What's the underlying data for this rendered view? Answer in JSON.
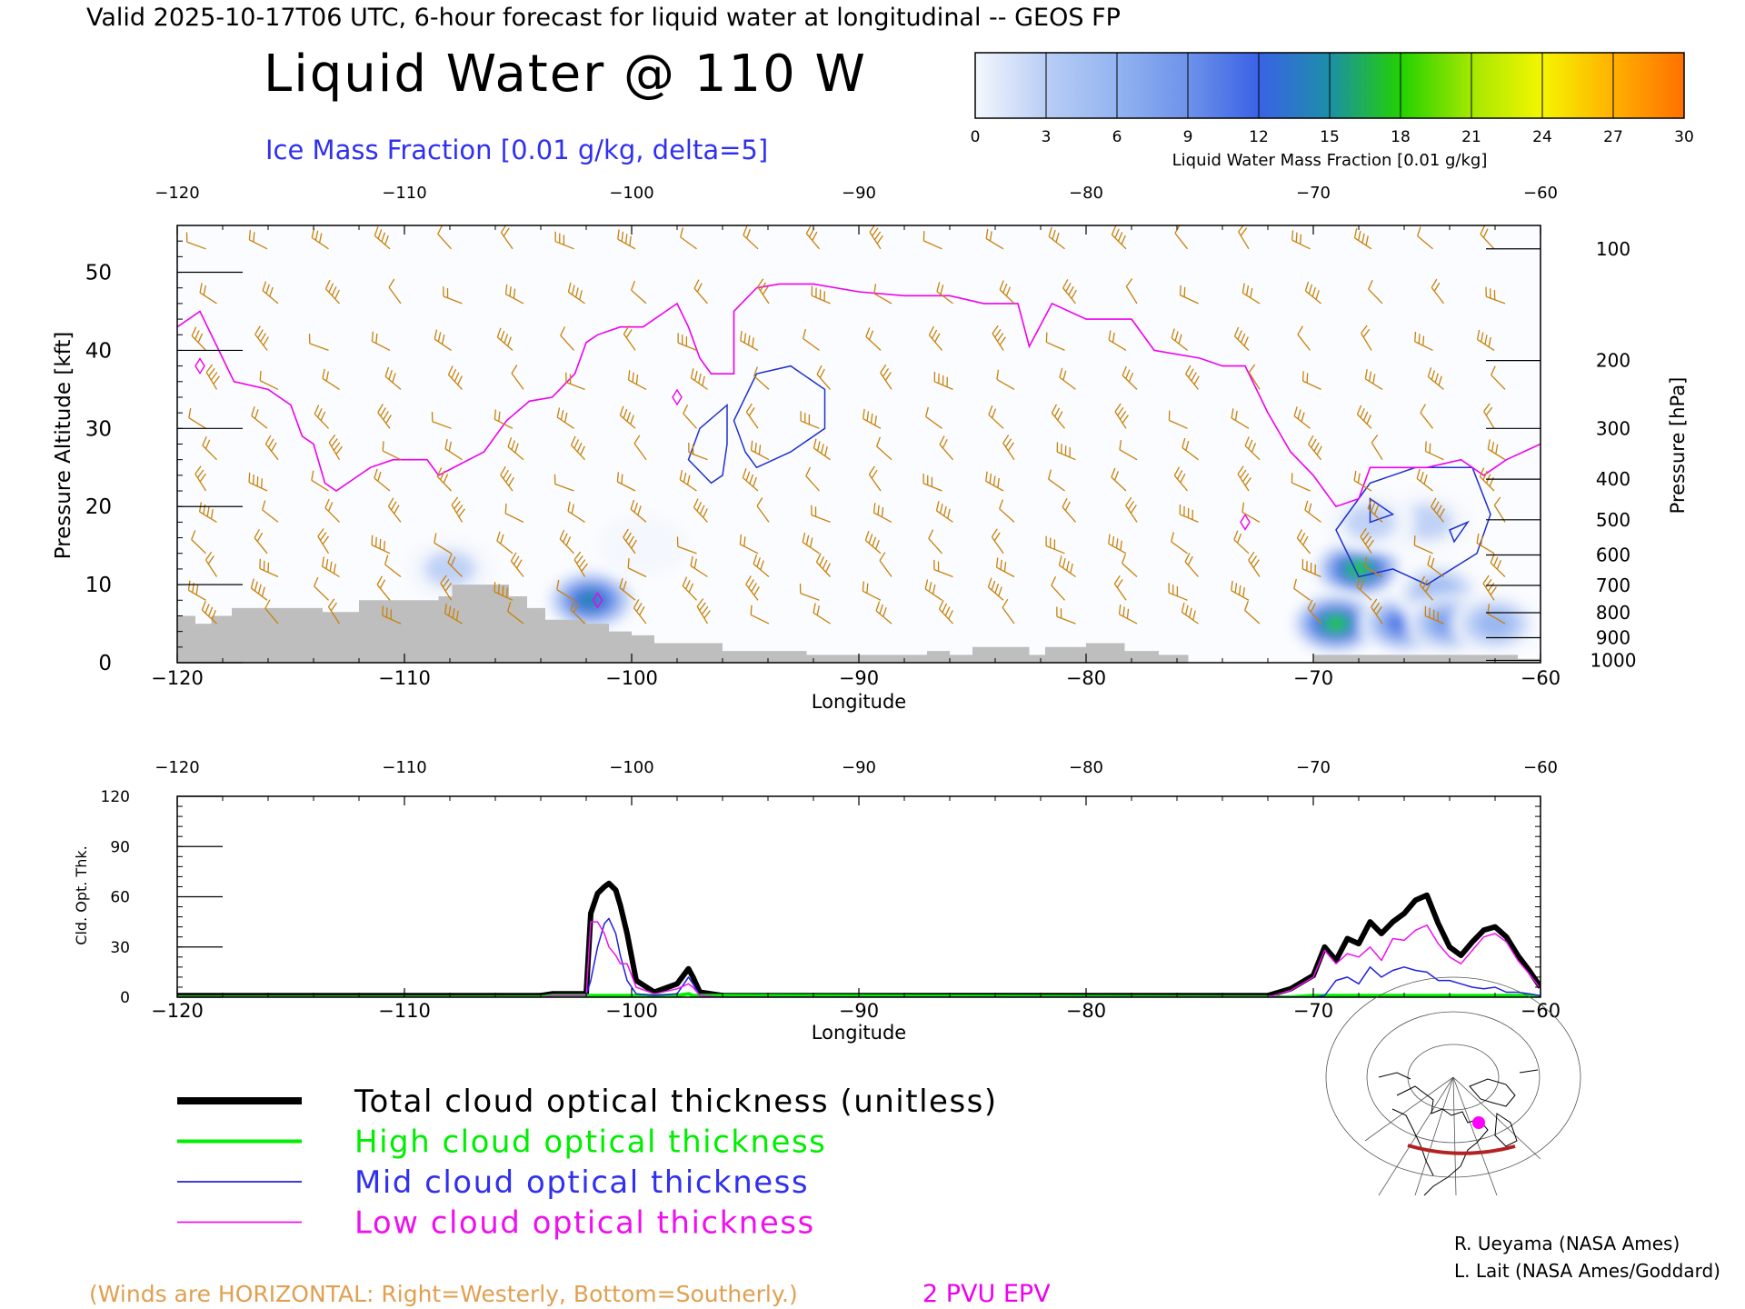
{
  "header": {
    "valid_line": "Valid 2025-10-17T06 UTC, 6-hour forecast for liquid water at longitudinal -- GEOS FP",
    "main_title": "Liquid Water @ 110 W",
    "subtitle": "Ice Mass Fraction [0.01 g/kg, delta=5]"
  },
  "colorbar": {
    "ticks": [
      "0",
      "3",
      "6",
      "9",
      "12",
      "15",
      "18",
      "21",
      "24",
      "27",
      "30"
    ],
    "label": "Liquid Water Mass Fraction [0.01 g/kg]",
    "colors": [
      "#f4f7fd",
      "#b9cdf5",
      "#93b4f1",
      "#6d92ea",
      "#3a62e6",
      "#1c8fa8",
      "#22d100",
      "#a5e800",
      "#f5f500",
      "#ffb000",
      "#ff7000"
    ]
  },
  "colors": {
    "wind_barbs": "#c8820a",
    "epv_contour": "#ee00ee",
    "ice_contour": "#2030cc",
    "terrain": "#bebebe",
    "total": "#000000",
    "high": "#00ee00",
    "mid": "#2020e0",
    "low": "#ee11ee"
  },
  "chart_data": [
    {
      "type": "heatmap",
      "xlabel": "Longitude",
      "ylabel": "Pressure Altitude [kft]",
      "y2label": "Pressure [hPa]",
      "xlim": [
        -120,
        -60
      ],
      "ylim": [
        0,
        56
      ],
      "x_ticks": [
        "-120",
        "-110",
        "-100",
        "-90",
        "-80",
        "-70",
        "-60"
      ],
      "y_ticks": [
        "0",
        "10",
        "20",
        "30",
        "40",
        "50"
      ],
      "pressure_ticks": [
        {
          "label": "100",
          "kft": 53
        },
        {
          "label": "200",
          "kft": 38.7
        },
        {
          "label": "300",
          "kft": 30
        },
        {
          "label": "400",
          "kft": 23.5
        },
        {
          "label": "500",
          "kft": 18.3
        },
        {
          "label": "600",
          "kft": 13.8
        },
        {
          "label": "700",
          "kft": 9.9
        },
        {
          "label": "800",
          "kft": 6.4
        },
        {
          "label": "900",
          "kft": 3.2
        },
        {
          "label": "1000",
          "kft": 0.3
        }
      ],
      "terrain_kft": [
        [
          -120,
          6
        ],
        [
          -119.2,
          6
        ],
        [
          -119.2,
          5
        ],
        [
          -118.5,
          5
        ],
        [
          -118.5,
          6
        ],
        [
          -117.6,
          6
        ],
        [
          -117.6,
          7
        ],
        [
          -113.6,
          7
        ],
        [
          -113.6,
          6.5
        ],
        [
          -112,
          6.5
        ],
        [
          -112,
          8
        ],
        [
          -108.5,
          8
        ],
        [
          -108.5,
          8.5
        ],
        [
          -107.9,
          8.5
        ],
        [
          -107.9,
          10
        ],
        [
          -105.4,
          10
        ],
        [
          -105.4,
          8.5
        ],
        [
          -104.6,
          8.5
        ],
        [
          -104.6,
          7
        ],
        [
          -103.8,
          7
        ],
        [
          -103.8,
          5.5
        ],
        [
          -102,
          5.5
        ],
        [
          -102,
          5
        ],
        [
          -101,
          5
        ],
        [
          -101,
          4
        ],
        [
          -100,
          4
        ],
        [
          -100,
          3.5
        ],
        [
          -99,
          3.5
        ],
        [
          -99,
          2.5
        ],
        [
          -96,
          2.5
        ],
        [
          -96,
          1.5
        ],
        [
          -92.3,
          1.5
        ],
        [
          -92.3,
          1
        ],
        [
          -87,
          1
        ],
        [
          -87,
          1.5
        ],
        [
          -86,
          1.5
        ],
        [
          -86,
          1
        ],
        [
          -85,
          1
        ],
        [
          -85,
          2
        ],
        [
          -82.5,
          2
        ],
        [
          -82.5,
          1
        ],
        [
          -81.8,
          1
        ],
        [
          -81.8,
          2
        ],
        [
          -80,
          2
        ],
        [
          -80,
          2.5
        ],
        [
          -78.3,
          2.5
        ],
        [
          -78.3,
          1.5
        ],
        [
          -76.8,
          1.5
        ],
        [
          -76.8,
          1
        ],
        [
          -75.5,
          1
        ],
        [
          -75.5,
          0
        ],
        [
          -70,
          0
        ],
        [
          -70,
          1
        ],
        [
          -61,
          1
        ],
        [
          -61,
          0.5
        ],
        [
          -60,
          0.5
        ]
      ],
      "epv_2pvu_kft": [
        [
          -120,
          43
        ],
        [
          -119,
          45
        ],
        [
          -118.5,
          42
        ],
        [
          -117.5,
          36
        ],
        [
          -116,
          35
        ],
        [
          -115,
          33
        ],
        [
          -114.5,
          29
        ],
        [
          -114,
          28
        ],
        [
          -113.5,
          23
        ],
        [
          -113,
          22
        ],
        [
          -111.5,
          25
        ],
        [
          -110.5,
          26
        ],
        [
          -109,
          26
        ],
        [
          -108.5,
          24
        ],
        [
          -107.5,
          25.5
        ],
        [
          -106.5,
          27
        ],
        [
          -105.5,
          31
        ],
        [
          -104.5,
          33.5
        ],
        [
          -103.5,
          34
        ],
        [
          -102.5,
          37
        ],
        [
          -102,
          41
        ],
        [
          -101.5,
          42
        ],
        [
          -100.5,
          43
        ],
        [
          -99.5,
          43
        ],
        [
          -98.5,
          45
        ],
        [
          -98,
          46
        ],
        [
          -97.5,
          43
        ],
        [
          -97,
          39
        ],
        [
          -96.5,
          37
        ],
        [
          -95.5,
          37
        ],
        [
          -95.5,
          45
        ],
        [
          -94.5,
          48
        ],
        [
          -93.5,
          48.5
        ],
        [
          -92,
          48.5
        ],
        [
          -90,
          47.5
        ],
        [
          -88,
          47
        ],
        [
          -86,
          47
        ],
        [
          -84.5,
          46
        ],
        [
          -83,
          46
        ],
        [
          -82.5,
          40.5
        ],
        [
          -81.5,
          46
        ],
        [
          -80,
          44
        ],
        [
          -78,
          44
        ],
        [
          -77,
          40
        ],
        [
          -75,
          39
        ],
        [
          -74,
          38
        ],
        [
          -73,
          38
        ],
        [
          -72,
          32
        ],
        [
          -71,
          27
        ],
        [
          -70,
          24
        ],
        [
          -69,
          20
        ],
        [
          -68,
          21
        ],
        [
          -67.5,
          25
        ],
        [
          -66,
          25
        ],
        [
          -65,
          25
        ],
        [
          -63.5,
          26
        ],
        [
          -62.5,
          24
        ],
        [
          -61.5,
          26
        ],
        [
          -60,
          28
        ]
      ],
      "clouds": [
        {
          "lon": -101.8,
          "kft": 8,
          "value": 16
        },
        {
          "lon": -68,
          "kft": 12,
          "value": 18
        },
        {
          "lon": -69,
          "kft": 5,
          "value": 18
        },
        {
          "lon": -66,
          "kft": 5,
          "value": 11
        },
        {
          "lon": -64.5,
          "kft": 9,
          "value": 6
        },
        {
          "lon": -64,
          "kft": 5,
          "value": 9
        },
        {
          "lon": -62,
          "kft": 5,
          "value": 6
        },
        {
          "lon": -65,
          "kft": 18,
          "value": 3
        },
        {
          "lon": -67.5,
          "kft": 18,
          "value": 4
        },
        {
          "lon": -108,
          "kft": 12,
          "value": 2
        },
        {
          "lon": -99.5,
          "kft": 15,
          "value": 1
        }
      ]
    },
    {
      "type": "line",
      "xlabel": "Longitude",
      "ylabel": "Cld. Opt. Thk.",
      "xlim": [
        -120,
        -60
      ],
      "ylim": [
        0,
        120
      ],
      "x_ticks": [
        "-120",
        "-110",
        "-100",
        "-90",
        "-80",
        "-70",
        "-60"
      ],
      "y_ticks": [
        "0",
        "30",
        "60",
        "90",
        "120"
      ],
      "x": [
        -120,
        -104,
        -103.5,
        -102,
        -101.8,
        -101.5,
        -101.2,
        -101,
        -100.7,
        -100.5,
        -100.2,
        -99.8,
        -99,
        -98,
        -97.5,
        -97.3,
        -97,
        -96,
        -72,
        -71,
        -70,
        -69.5,
        -69,
        -68.5,
        -68,
        -67.5,
        -67,
        -66.5,
        -66,
        -65.5,
        -65,
        -64.5,
        -64,
        -63.5,
        -63,
        -62.5,
        -62,
        -61.5,
        -61,
        -60.5,
        -60
      ],
      "series": [
        {
          "name": "Total cloud optical thickness (unitless)",
          "key": "total",
          "width": 6,
          "values": [
            1,
            1,
            2,
            2,
            50,
            62,
            66,
            68,
            64,
            55,
            38,
            10,
            3,
            8,
            17,
            12,
            3,
            1,
            1,
            5,
            13,
            30,
            22,
            35,
            32,
            45,
            38,
            45,
            50,
            58,
            61,
            44,
            30,
            25,
            33,
            40,
            42,
            36,
            25,
            16,
            6
          ]
        },
        {
          "name": "High cloud optical thickness",
          "key": "high",
          "width": 4,
          "values": [
            0,
            0,
            1,
            1,
            1,
            1,
            1,
            1,
            1,
            1,
            1,
            1,
            1,
            1,
            2,
            1,
            1,
            1,
            0,
            0,
            1,
            1,
            1,
            1,
            1,
            1,
            1,
            1,
            1,
            1,
            1,
            1,
            1,
            1,
            1,
            1,
            1,
            1,
            1,
            1,
            0
          ]
        },
        {
          "name": "Mid cloud optical thickness",
          "key": "mid",
          "width": 1.5,
          "values": [
            0,
            0,
            1,
            1,
            10,
            30,
            44,
            47,
            38,
            25,
            10,
            2,
            1,
            2,
            12,
            8,
            1,
            0,
            0,
            0,
            0,
            1,
            10,
            12,
            8,
            18,
            12,
            16,
            18,
            16,
            15,
            10,
            10,
            8,
            6,
            5,
            6,
            3,
            3,
            2,
            1
          ]
        },
        {
          "name": "Low cloud optical thickness",
          "key": "low",
          "width": 1.5,
          "values": [
            0,
            0,
            1,
            1,
            45,
            45,
            38,
            30,
            25,
            20,
            20,
            6,
            2,
            5,
            8,
            6,
            1,
            0,
            0,
            4,
            12,
            28,
            20,
            26,
            24,
            30,
            22,
            35,
            34,
            40,
            43,
            32,
            24,
            20,
            28,
            36,
            38,
            33,
            22,
            14,
            5
          ]
        }
      ]
    }
  ],
  "legend": {
    "items": [
      {
        "key": "total",
        "label": "Total cloud optical thickness (unitless)"
      },
      {
        "key": "high",
        "label": "High cloud optical thickness"
      },
      {
        "key": "mid",
        "label": "Mid cloud optical thickness"
      },
      {
        "key": "low",
        "label": "Low cloud optical thickness"
      }
    ]
  },
  "footer": {
    "winds_note": "(Winds are HORIZONTAL: Right=Westerly, Bottom=Southerly.)",
    "epv_label": "2 PVU EPV",
    "credit_1": "R. Ueyama (NASA Ames)",
    "credit_2": "L. Lait (NASA Ames/Goddard)"
  }
}
